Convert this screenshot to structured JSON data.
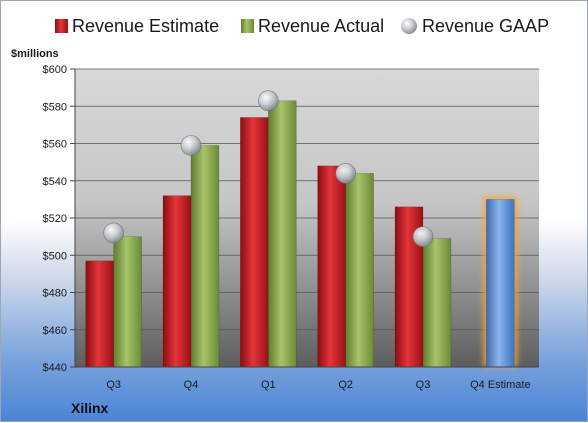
{
  "chart_data": {
    "type": "bar",
    "ylabel": "$millions",
    "ylim": [
      440,
      600
    ],
    "yticks": [
      "$440",
      "$460",
      "$480",
      "$500",
      "$520",
      "$540",
      "$560",
      "$580",
      "$600"
    ],
    "ytick_values": [
      440,
      460,
      480,
      500,
      520,
      540,
      560,
      580,
      600
    ],
    "categories": [
      "Q3",
      "Q4",
      "Q1",
      "Q2",
      "Q3",
      "Q4 Estimate"
    ],
    "series": [
      {
        "name": "Revenue Estimate",
        "type": "bar",
        "values": [
          497,
          532,
          574,
          548,
          526,
          null
        ]
      },
      {
        "name": "Revenue Actual",
        "type": "bar",
        "values": [
          510,
          559,
          583,
          544,
          509,
          null
        ]
      },
      {
        "name": "Revenue GAAP",
        "type": "scatter",
        "values": [
          512,
          559,
          583,
          544,
          510,
          null
        ]
      },
      {
        "name": "",
        "type": "bar",
        "values": [
          null,
          null,
          null,
          null,
          null,
          530
        ]
      }
    ],
    "legend_position": "top",
    "grid": true,
    "company": "Xilinx"
  },
  "colors": {
    "estimate": "#c4161c",
    "actual": "#8cac4e",
    "gaap": "#aeb4bd",
    "future_estimate": "#5b8fd3",
    "future_glow": "#f7a440"
  }
}
